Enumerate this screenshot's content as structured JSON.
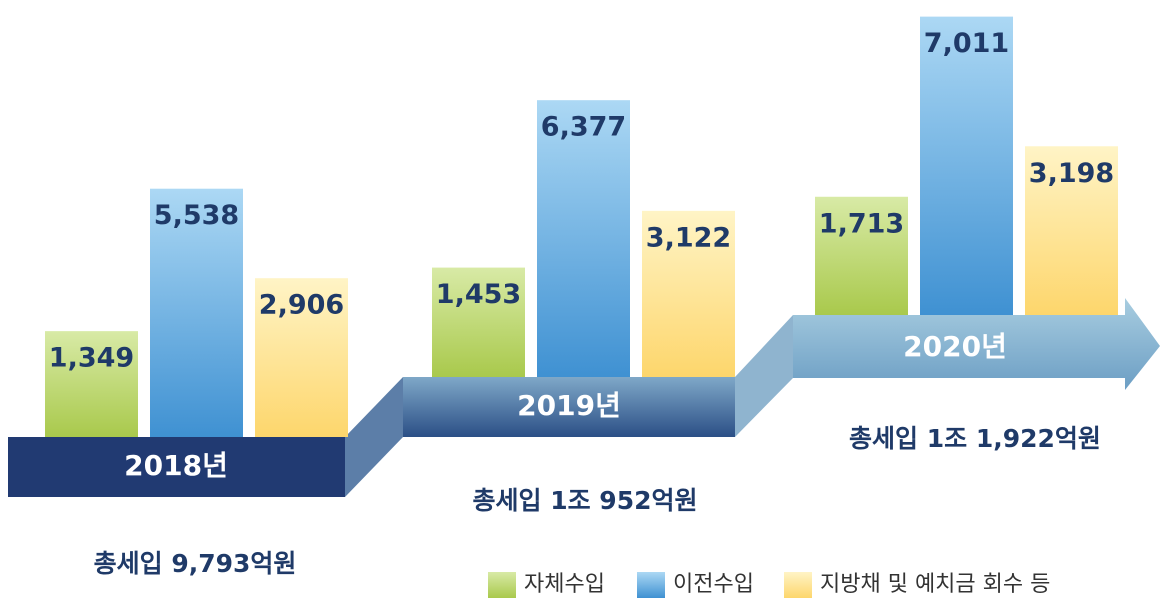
{
  "chart_data": {
    "type": "bar",
    "categories": [
      "2018년",
      "2019년",
      "2020년"
    ],
    "series": [
      {
        "name": "자체수입",
        "color": "#a9c94c",
        "values": [
          1349,
          1453,
          1713
        ],
        "value_labels": [
          "1,349",
          "1,453",
          "1,713"
        ]
      },
      {
        "name": "이전수입",
        "color": "#3f91d2",
        "values": [
          5538,
          6377,
          7011
        ],
        "value_labels": [
          "5,538",
          "6,377",
          "7,011"
        ]
      },
      {
        "name": "지방채 및 예치금 회수 등",
        "color": "#fdd66c",
        "values": [
          2906,
          3122,
          3198
        ],
        "value_labels": [
          "2,906",
          "3,122",
          "3,198"
        ]
      }
    ],
    "annotations": [
      "총세입 9,793억원",
      "총세입 1조 952억원",
      "총세입 1조 1,922억원"
    ]
  }
}
